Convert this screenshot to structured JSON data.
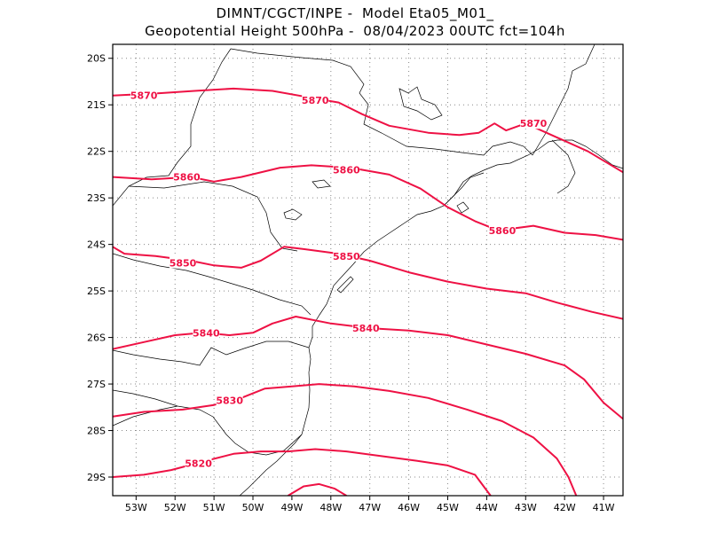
{
  "header": {
    "line1": "DIMNT/CGCT/INPE -  Model Eta05_M01_",
    "line2": "Geopotential Height 500hPa -  08/04/2023 00UTC fct=104h"
  },
  "colors": {
    "contour": "#ee1144",
    "contour_label": "#ee1144",
    "coastline": "#000000",
    "grid": "#888888",
    "frame": "#000000"
  },
  "chart_data": {
    "type": "line",
    "title": "Geopotential Height 500hPa",
    "subtitle": "08/04/2023 00UTC fct=104h",
    "xlim": [
      -53.6,
      -40.5
    ],
    "ylim": [
      -29.4,
      -19.7
    ],
    "x_ticks": [
      {
        "value": -53,
        "label": "53W"
      },
      {
        "value": -52,
        "label": "52W"
      },
      {
        "value": -51,
        "label": "51W"
      },
      {
        "value": -50,
        "label": "50W"
      },
      {
        "value": -49,
        "label": "49W"
      },
      {
        "value": -48,
        "label": "48W"
      },
      {
        "value": -47,
        "label": "47W"
      },
      {
        "value": -46,
        "label": "46W"
      },
      {
        "value": -45,
        "label": "45W"
      },
      {
        "value": -44,
        "label": "44W"
      },
      {
        "value": -43,
        "label": "43W"
      },
      {
        "value": -42,
        "label": "42W"
      },
      {
        "value": -41,
        "label": "41W"
      }
    ],
    "y_ticks": [
      {
        "value": -20,
        "label": "20S"
      },
      {
        "value": -21,
        "label": "21S"
      },
      {
        "value": -22,
        "label": "22S"
      },
      {
        "value": -23,
        "label": "23S"
      },
      {
        "value": -24,
        "label": "24S"
      },
      {
        "value": -25,
        "label": "25S"
      },
      {
        "value": -26,
        "label": "26S"
      },
      {
        "value": -27,
        "label": "27S"
      },
      {
        "value": -28,
        "label": "28S"
      },
      {
        "value": -29,
        "label": "29S"
      }
    ],
    "grid": true,
    "series": [
      {
        "name": "5870",
        "labels": [
          {
            "lon": -52.8,
            "lat": -20.8
          },
          {
            "lon": -48.4,
            "lat": -20.9
          },
          {
            "lon": -42.8,
            "lat": -21.4
          }
        ],
        "points": [
          [
            -53.6,
            -20.8
          ],
          [
            -52.4,
            -20.75
          ],
          [
            -51.5,
            -20.7
          ],
          [
            -50.5,
            -20.65
          ],
          [
            -49.5,
            -20.7
          ],
          [
            -48.5,
            -20.85
          ],
          [
            -47.8,
            -20.95
          ],
          [
            -47.2,
            -21.2
          ],
          [
            -46.5,
            -21.45
          ],
          [
            -45.5,
            -21.6
          ],
          [
            -44.7,
            -21.65
          ],
          [
            -44.2,
            -21.6
          ],
          [
            -43.8,
            -21.4
          ],
          [
            -43.5,
            -21.55
          ],
          [
            -43.0,
            -21.4
          ],
          [
            -42.2,
            -21.7
          ],
          [
            -41.4,
            -22.0
          ],
          [
            -40.5,
            -22.45
          ]
        ]
      },
      {
        "name": "5860",
        "labels": [
          {
            "lon": -51.7,
            "lat": -22.55
          },
          {
            "lon": -47.6,
            "lat": -22.4
          },
          {
            "lon": -43.6,
            "lat": -23.7
          }
        ],
        "points": [
          [
            -53.6,
            -22.55
          ],
          [
            -52.6,
            -22.6
          ],
          [
            -51.6,
            -22.55
          ],
          [
            -51.0,
            -22.65
          ],
          [
            -50.3,
            -22.55
          ],
          [
            -49.3,
            -22.35
          ],
          [
            -48.5,
            -22.3
          ],
          [
            -47.5,
            -22.35
          ],
          [
            -46.5,
            -22.5
          ],
          [
            -45.7,
            -22.8
          ],
          [
            -45.0,
            -23.2
          ],
          [
            -44.3,
            -23.5
          ],
          [
            -43.7,
            -23.7
          ],
          [
            -42.8,
            -23.6
          ],
          [
            -42.0,
            -23.75
          ],
          [
            -41.2,
            -23.8
          ],
          [
            -40.5,
            -23.9
          ]
        ]
      },
      {
        "name": "5850",
        "labels": [
          {
            "lon": -51.8,
            "lat": -24.4
          },
          {
            "lon": -47.6,
            "lat": -24.25
          }
        ],
        "points": [
          [
            -53.6,
            -24.05
          ],
          [
            -53.3,
            -24.2
          ],
          [
            -52.5,
            -24.25
          ],
          [
            -51.6,
            -24.35
          ],
          [
            -51.0,
            -24.45
          ],
          [
            -50.3,
            -24.5
          ],
          [
            -49.8,
            -24.35
          ],
          [
            -49.2,
            -24.05
          ],
          [
            -48.7,
            -24.1
          ],
          [
            -47.8,
            -24.2
          ],
          [
            -47.0,
            -24.35
          ],
          [
            -46.0,
            -24.6
          ],
          [
            -45.0,
            -24.8
          ],
          [
            -44.0,
            -24.95
          ],
          [
            -43.0,
            -25.05
          ],
          [
            -42.2,
            -25.25
          ],
          [
            -41.3,
            -25.45
          ],
          [
            -40.5,
            -25.6
          ]
        ]
      },
      {
        "name": "5840",
        "labels": [
          {
            "lon": -51.2,
            "lat": -25.9
          },
          {
            "lon": -47.1,
            "lat": -25.8
          }
        ],
        "points": [
          [
            -53.6,
            -26.25
          ],
          [
            -52.8,
            -26.1
          ],
          [
            -52.0,
            -25.95
          ],
          [
            -51.3,
            -25.9
          ],
          [
            -50.6,
            -25.95
          ],
          [
            -50.0,
            -25.9
          ],
          [
            -49.5,
            -25.7
          ],
          [
            -48.9,
            -25.55
          ],
          [
            -48.0,
            -25.7
          ],
          [
            -47.0,
            -25.8
          ],
          [
            -46.0,
            -25.85
          ],
          [
            -45.0,
            -25.95
          ],
          [
            -44.0,
            -26.15
          ],
          [
            -43.0,
            -26.35
          ],
          [
            -42.0,
            -26.6
          ],
          [
            -41.5,
            -26.9
          ],
          [
            -41.0,
            -27.4
          ],
          [
            -40.5,
            -27.75
          ]
        ]
      },
      {
        "name": "5830",
        "labels": [
          {
            "lon": -50.6,
            "lat": -27.35
          }
        ],
        "points": [
          [
            -53.6,
            -27.7
          ],
          [
            -52.8,
            -27.6
          ],
          [
            -51.8,
            -27.55
          ],
          [
            -51.0,
            -27.45
          ],
          [
            -50.3,
            -27.3
          ],
          [
            -49.7,
            -27.1
          ],
          [
            -49.0,
            -27.05
          ],
          [
            -48.3,
            -27.0
          ],
          [
            -47.4,
            -27.05
          ],
          [
            -46.5,
            -27.15
          ],
          [
            -45.5,
            -27.3
          ],
          [
            -44.5,
            -27.55
          ],
          [
            -43.6,
            -27.8
          ],
          [
            -42.8,
            -28.15
          ],
          [
            -42.2,
            -28.6
          ],
          [
            -41.9,
            -29.0
          ],
          [
            -41.7,
            -29.4
          ]
        ]
      },
      {
        "name": "5820",
        "labels": [
          {
            "lon": -51.4,
            "lat": -28.7
          }
        ],
        "points": [
          [
            -53.6,
            -29.0
          ],
          [
            -52.8,
            -28.95
          ],
          [
            -52.1,
            -28.85
          ],
          [
            -51.2,
            -28.65
          ],
          [
            -50.5,
            -28.5
          ],
          [
            -49.8,
            -28.45
          ],
          [
            -49.1,
            -28.45
          ],
          [
            -48.4,
            -28.4
          ],
          [
            -47.6,
            -28.45
          ],
          [
            -46.7,
            -28.55
          ],
          [
            -45.8,
            -28.65
          ],
          [
            -45.0,
            -28.75
          ],
          [
            -44.3,
            -28.95
          ],
          [
            -43.9,
            -29.4
          ]
        ]
      },
      {
        "name": "",
        "labels": [],
        "points": [
          [
            -49.1,
            -29.4
          ],
          [
            -48.7,
            -29.2
          ],
          [
            -48.3,
            -29.15
          ],
          [
            -47.9,
            -29.25
          ],
          [
            -47.6,
            -29.4
          ]
        ]
      }
    ]
  }
}
